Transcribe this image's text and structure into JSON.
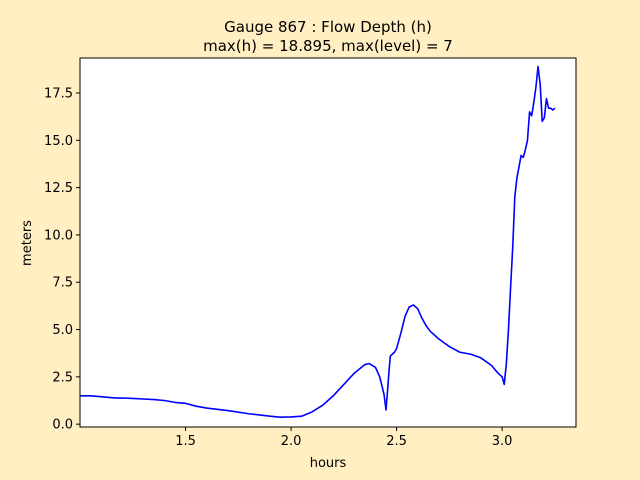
{
  "figure": {
    "background_color": "#ffefc2",
    "axes_background_color": "#ffffff"
  },
  "chart_data": {
    "type": "line",
    "title_lines": [
      "Gauge 867 : Flow Depth (h)",
      "max(h) =  18.895,    max(level) = 7"
    ],
    "xlabel": "hours",
    "ylabel": "meters",
    "xlim": [
      1.0,
      3.35
    ],
    "ylim": [
      -0.15,
      19.35
    ],
    "xticks": [
      1.5,
      2.0,
      2.5,
      3.0
    ],
    "xtick_labels": [
      "1.5",
      "2.0",
      "2.5",
      "3.0"
    ],
    "yticks": [
      0.0,
      2.5,
      5.0,
      7.5,
      10.0,
      12.5,
      15.0,
      17.5
    ],
    "ytick_labels": [
      "0.0",
      "2.5",
      "5.0",
      "7.5",
      "10.0",
      "12.5",
      "15.0",
      "17.5"
    ],
    "grid": false,
    "series": [
      {
        "color": "#0000ff",
        "x": [
          1.0,
          1.05,
          1.1,
          1.15,
          1.18,
          1.2,
          1.25,
          1.3,
          1.35,
          1.4,
          1.45,
          1.5,
          1.55,
          1.6,
          1.7,
          1.8,
          1.9,
          1.95,
          2.0,
          2.05,
          2.1,
          2.15,
          2.2,
          2.25,
          2.3,
          2.35,
          2.37,
          2.4,
          2.42,
          2.44,
          2.45,
          2.46,
          2.47,
          2.48,
          2.49,
          2.5,
          2.52,
          2.54,
          2.56,
          2.58,
          2.6,
          2.62,
          2.64,
          2.66,
          2.7,
          2.75,
          2.8,
          2.85,
          2.9,
          2.95,
          2.98,
          3.0,
          3.01,
          3.02,
          3.03,
          3.04,
          3.05,
          3.06,
          3.07,
          3.08,
          3.09,
          3.1,
          3.11,
          3.12,
          3.13,
          3.14,
          3.15,
          3.16,
          3.17,
          3.18,
          3.19,
          3.2,
          3.21,
          3.22,
          3.23,
          3.24,
          3.25
        ],
        "y": [
          1.5,
          1.5,
          1.45,
          1.4,
          1.38,
          1.38,
          1.36,
          1.33,
          1.3,
          1.25,
          1.15,
          1.1,
          0.95,
          0.85,
          0.72,
          0.55,
          0.42,
          0.37,
          0.38,
          0.42,
          0.65,
          1.0,
          1.5,
          2.1,
          2.7,
          3.15,
          3.2,
          3.0,
          2.5,
          1.6,
          0.75,
          2.2,
          3.6,
          3.7,
          3.8,
          4.0,
          4.8,
          5.7,
          6.2,
          6.3,
          6.1,
          5.6,
          5.2,
          4.9,
          4.5,
          4.1,
          3.8,
          3.7,
          3.5,
          3.1,
          2.7,
          2.5,
          2.1,
          3.2,
          5.0,
          7.2,
          9.3,
          12.0,
          13.0,
          13.6,
          14.2,
          14.1,
          14.5,
          15.0,
          16.5,
          16.3,
          17.0,
          17.8,
          18.9,
          18.0,
          16.0,
          16.2,
          17.2,
          16.7,
          16.7,
          16.6,
          16.7
        ]
      }
    ]
  }
}
